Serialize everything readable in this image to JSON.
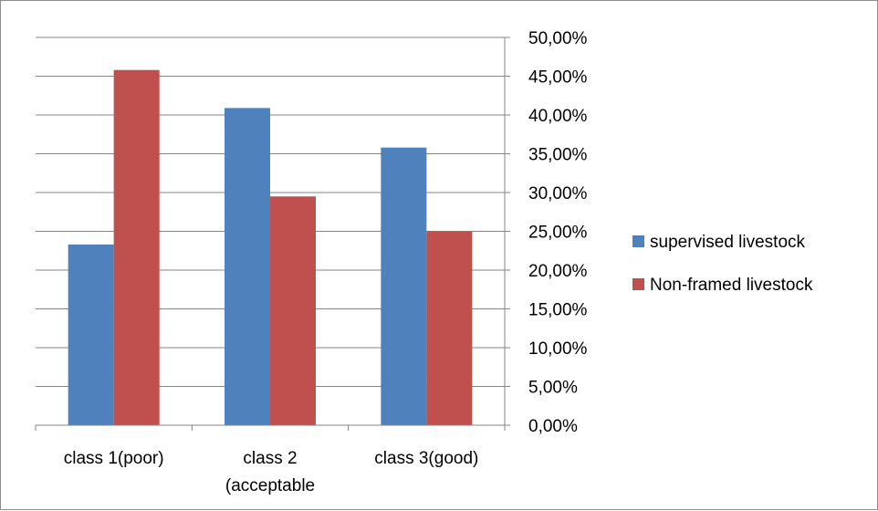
{
  "chart_data": {
    "type": "bar",
    "categories": [
      [
        "class 1(poor)"
      ],
      [
        "class 2",
        "(acceptable"
      ],
      [
        "class 3(good)"
      ]
    ],
    "series": [
      {
        "name": "supervised livestock",
        "values": [
          23.3,
          40.9,
          35.8
        ],
        "color": "#4f81bd"
      },
      {
        "name": "Non-framed livestock",
        "values": [
          45.8,
          29.5,
          25.0
        ],
        "color": "#c0504d"
      }
    ],
    "ylim": [
      0,
      50
    ],
    "ytick_step": 5,
    "ytick_labels": [
      "0,00%",
      "5,00%",
      "10,00%",
      "15,00%",
      "20,00%",
      "25,00%",
      "30,00%",
      "35,00%",
      "40,00%",
      "45,00%",
      "50,00%"
    ],
    "y_axis_side": "right",
    "grid": true,
    "legend": "right",
    "title": "",
    "xlabel": "",
    "ylabel": ""
  }
}
